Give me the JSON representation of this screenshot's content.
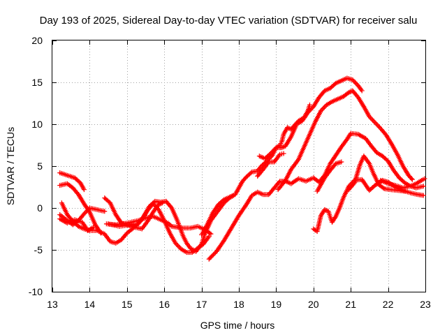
{
  "chart_data": {
    "type": "scatter",
    "title": "Day 193 of 2025, Sidereal Day-to-day VTEC variation (SDTVAR) for receiver salu",
    "xlabel": "GPS time / hours",
    "ylabel": "SDTVAR / TECUs",
    "xlim": [
      13,
      23
    ],
    "ylim": [
      -10,
      20
    ],
    "xticks": [
      13,
      14,
      15,
      16,
      17,
      18,
      19,
      20,
      21,
      22,
      23
    ],
    "xtick_labels": [
      "13",
      "14",
      "15",
      "16",
      "17",
      "18",
      "19",
      "20",
      "21",
      "22",
      "23"
    ],
    "yticks": [
      -10,
      -5,
      0,
      5,
      10,
      15,
      20
    ],
    "ytick_labels": [
      "-10",
      "-5",
      "0",
      "5",
      "10",
      "15",
      "20"
    ],
    "grid": true,
    "marker": "plus",
    "series_color": "#ff0000",
    "series": [
      {
        "name": "arc1",
        "points": [
          [
            13.2,
            4.2
          ],
          [
            13.4,
            3.9
          ],
          [
            13.6,
            3.6
          ],
          [
            13.75,
            3.0
          ],
          [
            13.85,
            2.2
          ]
        ]
      },
      {
        "name": "arc2",
        "points": [
          [
            13.2,
            2.7
          ],
          [
            13.4,
            2.9
          ],
          [
            13.55,
            2.4
          ],
          [
            13.7,
            1.6
          ],
          [
            13.85,
            0.5
          ],
          [
            14.0,
            -0.5
          ],
          [
            14.15,
            -2.0
          ],
          [
            14.3,
            -3.0
          ]
        ]
      },
      {
        "name": "arc3",
        "points": [
          [
            13.25,
            0.6
          ],
          [
            13.4,
            -0.8
          ],
          [
            13.55,
            -1.6
          ],
          [
            13.7,
            -2.2
          ],
          [
            13.85,
            -2.5
          ],
          [
            14.0,
            -2.7
          ],
          [
            14.2,
            -2.7
          ],
          [
            14.4,
            -3.1
          ],
          [
            14.55,
            -4.0
          ],
          [
            14.7,
            -4.2
          ],
          [
            14.85,
            -3.8
          ],
          [
            15.0,
            -3.0
          ],
          [
            15.2,
            -2.3
          ],
          [
            15.4,
            -1.4
          ],
          [
            15.55,
            -0.3
          ],
          [
            15.7,
            0.5
          ],
          [
            15.85,
            -0.2
          ],
          [
            16.0,
            -1.5
          ],
          [
            16.15,
            -3.0
          ],
          [
            16.3,
            -4.2
          ],
          [
            16.45,
            -4.9
          ],
          [
            16.6,
            -5.3
          ],
          [
            16.75,
            -5.3
          ],
          [
            16.9,
            -4.8
          ],
          [
            17.05,
            -4.3
          ],
          [
            17.2,
            -3.4
          ]
        ]
      },
      {
        "name": "arc4",
        "points": [
          [
            13.2,
            -0.8
          ],
          [
            13.4,
            -1.5
          ],
          [
            13.55,
            -2.0
          ],
          [
            13.7,
            -1.5
          ],
          [
            13.85,
            -0.7
          ],
          [
            14.0,
            0.0
          ],
          [
            14.2,
            -0.2
          ],
          [
            14.4,
            -0.4
          ]
        ]
      },
      {
        "name": "arc5",
        "points": [
          [
            13.2,
            -1.3
          ],
          [
            13.4,
            -1.8
          ],
          [
            13.6,
            -1.4
          ],
          [
            13.8,
            -1.7
          ],
          [
            13.95,
            -2.7
          ],
          [
            14.1,
            -2.3
          ]
        ]
      },
      {
        "name": "arc6",
        "points": [
          [
            14.4,
            1.2
          ],
          [
            14.55,
            0.6
          ],
          [
            14.7,
            -0.8
          ],
          [
            14.85,
            -1.8
          ],
          [
            15.0,
            -2.0
          ],
          [
            15.2,
            -2.3
          ],
          [
            15.4,
            -2.5
          ],
          [
            15.55,
            -1.6
          ],
          [
            15.7,
            -0.5
          ],
          [
            15.85,
            0.4
          ],
          [
            15.95,
            0.6
          ]
        ]
      },
      {
        "name": "arc7",
        "points": [
          [
            14.45,
            -1.9
          ],
          [
            14.7,
            -2.0
          ],
          [
            15.0,
            -1.8
          ],
          [
            15.3,
            -1.5
          ],
          [
            15.5,
            -1.2
          ],
          [
            15.7,
            -1.0
          ],
          [
            15.9,
            -1.4
          ],
          [
            16.1,
            -1.8
          ],
          [
            16.2,
            -2.2
          ],
          [
            16.35,
            -2.3
          ],
          [
            16.5,
            -2.4
          ],
          [
            16.7,
            -2.4
          ],
          [
            16.9,
            -2.2
          ],
          [
            17.1,
            -2.6
          ],
          [
            17.25,
            -3.1
          ]
        ]
      },
      {
        "name": "arc8",
        "points": [
          [
            14.5,
            -1.9
          ],
          [
            14.8,
            -2.2
          ],
          [
            15.1,
            -2.0
          ],
          [
            15.3,
            -1.9
          ],
          [
            15.45,
            -1.0
          ],
          [
            15.6,
            0.2
          ],
          [
            15.75,
            0.8
          ],
          [
            15.9,
            0.7
          ],
          [
            16.05,
            0.8
          ],
          [
            16.2,
            0.0
          ],
          [
            16.35,
            -1.5
          ],
          [
            16.5,
            -3.3
          ],
          [
            16.6,
            -4.2
          ],
          [
            16.7,
            -4.8
          ],
          [
            16.85,
            -5.2
          ],
          [
            17.0,
            -4.3
          ],
          [
            17.1,
            -3.0
          ],
          [
            17.25,
            -1.5
          ],
          [
            17.4,
            -0.6
          ],
          [
            17.6,
            0.6
          ],
          [
            17.75,
            1.2
          ],
          [
            17.9,
            1.6
          ],
          [
            18.0,
            2.4
          ],
          [
            18.1,
            3.2
          ],
          [
            18.2,
            3.7
          ],
          [
            18.35,
            4.3
          ],
          [
            18.5,
            4.4
          ],
          [
            18.6,
            5.0
          ],
          [
            18.75,
            5.6
          ],
          [
            18.9,
            6.3
          ],
          [
            19.0,
            7.2
          ],
          [
            19.1,
            7.5
          ],
          [
            19.15,
            7.9
          ],
          [
            19.2,
            8.8
          ],
          [
            19.3,
            9.6
          ],
          [
            19.4,
            9.4
          ],
          [
            19.5,
            9.9
          ],
          [
            19.6,
            10.4
          ],
          [
            19.75,
            10.8
          ],
          [
            19.85,
            11.6
          ],
          [
            19.9,
            12.3
          ]
        ]
      },
      {
        "name": "arc9",
        "points": [
          [
            17.0,
            -3.2
          ],
          [
            17.15,
            -2.0
          ],
          [
            17.3,
            -0.6
          ],
          [
            17.45,
            0.4
          ],
          [
            17.6,
            1.0
          ],
          [
            17.75,
            1.3
          ],
          [
            17.85,
            1.5
          ]
        ]
      },
      {
        "name": "arc10",
        "points": [
          [
            17.2,
            -6.1
          ],
          [
            17.4,
            -5.2
          ],
          [
            17.6,
            -3.9
          ],
          [
            17.8,
            -2.4
          ],
          [
            18.0,
            -0.9
          ],
          [
            18.2,
            0.4
          ],
          [
            18.35,
            1.5
          ],
          [
            18.5,
            1.9
          ],
          [
            18.65,
            1.6
          ],
          [
            18.8,
            1.6
          ],
          [
            18.95,
            2.4
          ],
          [
            19.1,
            3.2
          ],
          [
            19.25,
            3.2
          ],
          [
            19.4,
            2.9
          ],
          [
            19.6,
            3.5
          ],
          [
            19.8,
            3.2
          ],
          [
            20.0,
            3.6
          ],
          [
            20.15,
            3.1
          ],
          [
            20.3,
            3.9
          ],
          [
            20.45,
            5.3
          ],
          [
            20.6,
            6.3
          ],
          [
            20.75,
            7.3
          ],
          [
            20.9,
            8.2
          ],
          [
            21.0,
            8.9
          ],
          [
            21.2,
            8.8
          ],
          [
            21.4,
            8.3
          ],
          [
            21.55,
            7.4
          ],
          [
            21.7,
            6.6
          ],
          [
            21.85,
            6.2
          ],
          [
            22.0,
            5.6
          ],
          [
            22.15,
            4.5
          ],
          [
            22.3,
            3.6
          ],
          [
            22.45,
            3.0
          ],
          [
            22.6,
            2.6
          ],
          [
            22.75,
            2.4
          ],
          [
            22.95,
            2.6
          ]
        ]
      },
      {
        "name": "arc11",
        "points": [
          [
            18.55,
            6.2
          ],
          [
            18.7,
            5.9
          ],
          [
            18.85,
            6.5
          ],
          [
            19.0,
            7.2
          ],
          [
            19.15,
            7.2
          ],
          [
            19.25,
            7.4
          ],
          [
            19.4,
            8.5
          ],
          [
            19.55,
            10.0
          ],
          [
            19.7,
            10.4
          ],
          [
            19.85,
            11.4
          ],
          [
            20.0,
            12.1
          ],
          [
            20.15,
            13.2
          ],
          [
            20.3,
            14.0
          ],
          [
            20.45,
            14.3
          ],
          [
            20.6,
            14.9
          ],
          [
            20.75,
            15.2
          ],
          [
            20.9,
            15.5
          ],
          [
            21.05,
            15.3
          ],
          [
            21.2,
            14.6
          ],
          [
            21.3,
            14.0
          ]
        ]
      },
      {
        "name": "arc12",
        "points": [
          [
            18.5,
            3.8
          ],
          [
            18.65,
            4.6
          ],
          [
            18.8,
            5.5
          ],
          [
            18.95,
            5.5
          ],
          [
            19.1,
            6.4
          ],
          [
            19.2,
            6.5
          ]
        ]
      },
      {
        "name": "arc13",
        "points": [
          [
            19.05,
            2.2
          ],
          [
            19.25,
            3.3
          ],
          [
            19.4,
            4.6
          ],
          [
            19.6,
            5.8
          ],
          [
            19.75,
            7.3
          ],
          [
            19.9,
            8.8
          ],
          [
            20.05,
            10.3
          ],
          [
            20.2,
            11.6
          ],
          [
            20.35,
            12.3
          ],
          [
            20.5,
            12.7
          ],
          [
            20.65,
            13.0
          ],
          [
            20.8,
            13.3
          ],
          [
            20.95,
            13.8
          ],
          [
            21.05,
            14.0
          ],
          [
            21.2,
            13.2
          ],
          [
            21.35,
            12.1
          ],
          [
            21.5,
            10.9
          ],
          [
            21.65,
            10.2
          ],
          [
            21.8,
            9.5
          ],
          [
            21.95,
            8.7
          ],
          [
            22.1,
            7.6
          ],
          [
            22.25,
            6.4
          ],
          [
            22.4,
            5.0
          ],
          [
            22.55,
            3.9
          ],
          [
            22.65,
            3.4
          ]
        ]
      },
      {
        "name": "arc14",
        "points": [
          [
            20.1,
            2.0
          ],
          [
            20.3,
            3.6
          ],
          [
            20.45,
            4.5
          ],
          [
            20.6,
            5.3
          ],
          [
            20.75,
            5.5
          ]
        ]
      },
      {
        "name": "arc15",
        "points": [
          [
            20.0,
            -2.5
          ],
          [
            20.1,
            -2.8
          ],
          [
            20.2,
            -0.9
          ],
          [
            20.3,
            -0.2
          ],
          [
            20.4,
            -0.4
          ],
          [
            20.5,
            -1.7
          ],
          [
            20.6,
            -1.0
          ],
          [
            20.7,
            0.0
          ],
          [
            20.8,
            1.2
          ],
          [
            20.95,
            2.6
          ],
          [
            21.1,
            3.3
          ],
          [
            21.3,
            3.4
          ],
          [
            21.5,
            2.1
          ],
          [
            21.65,
            2.7
          ],
          [
            21.85,
            3.3
          ],
          [
            22.0,
            3.1
          ],
          [
            22.2,
            2.5
          ],
          [
            22.4,
            2.1
          ],
          [
            22.6,
            1.8
          ],
          [
            22.8,
            1.6
          ],
          [
            22.95,
            1.5
          ]
        ]
      },
      {
        "name": "arc16",
        "points": [
          [
            20.95,
            2.2
          ],
          [
            21.1,
            3.0
          ],
          [
            21.25,
            5.2
          ],
          [
            21.35,
            6.2
          ],
          [
            21.5,
            5.3
          ],
          [
            21.6,
            4.2
          ],
          [
            21.75,
            2.8
          ],
          [
            21.9,
            2.3
          ],
          [
            22.05,
            2.2
          ],
          [
            22.25,
            2.1
          ],
          [
            22.45,
            2.0
          ]
        ]
      },
      {
        "name": "arc17",
        "points": [
          [
            21.8,
            3.3
          ],
          [
            22.0,
            2.9
          ],
          [
            22.2,
            2.7
          ],
          [
            22.4,
            2.4
          ],
          [
            22.6,
            2.6
          ],
          [
            22.75,
            2.9
          ],
          [
            22.9,
            3.3
          ],
          [
            22.98,
            3.5
          ]
        ]
      }
    ]
  }
}
